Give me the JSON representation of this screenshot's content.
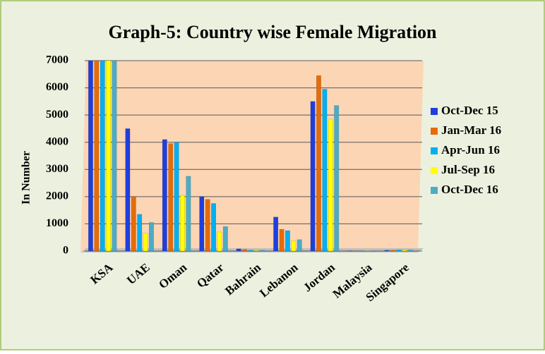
{
  "chart_data": {
    "type": "bar",
    "title": "Graph-5: Country wise Female Migration",
    "y_label": "In Number",
    "categories": [
      "KSA",
      "UAE",
      "Oman",
      "Qatar",
      "Bahrain",
      "Lebanon",
      "Jordan",
      "Malaysia",
      "Singapore"
    ],
    "series": [
      {
        "name": "Oct-Dec 15",
        "color": "#1f3fdc",
        "values": [
          7000,
          4500,
          4100,
          2000,
          80,
          1250,
          5500,
          10,
          30
        ]
      },
      {
        "name": "Jan-Mar 16",
        "color": "#e46c0a",
        "values": [
          7000,
          2000,
          3950,
          1900,
          60,
          800,
          6450,
          10,
          30
        ]
      },
      {
        "name": "Apr-Jun 16",
        "color": "#00b0f0",
        "values": [
          7000,
          1350,
          4000,
          1750,
          30,
          750,
          5950,
          10,
          40
        ]
      },
      {
        "name": "Jul-Sep 16",
        "color": "#ffff00",
        "values": [
          7000,
          650,
          2050,
          700,
          20,
          380,
          4850,
          10,
          40
        ]
      },
      {
        "name": "Oct-Dec 16",
        "color": "#4bacc6",
        "values": [
          7000,
          1050,
          2750,
          900,
          30,
          420,
          5350,
          10,
          40
        ]
      }
    ],
    "ylim": [
      0,
      7000
    ],
    "yticks": [
      0,
      1000,
      2000,
      3000,
      4000,
      5000,
      6000,
      7000
    ],
    "grid": true,
    "legend": "right"
  }
}
